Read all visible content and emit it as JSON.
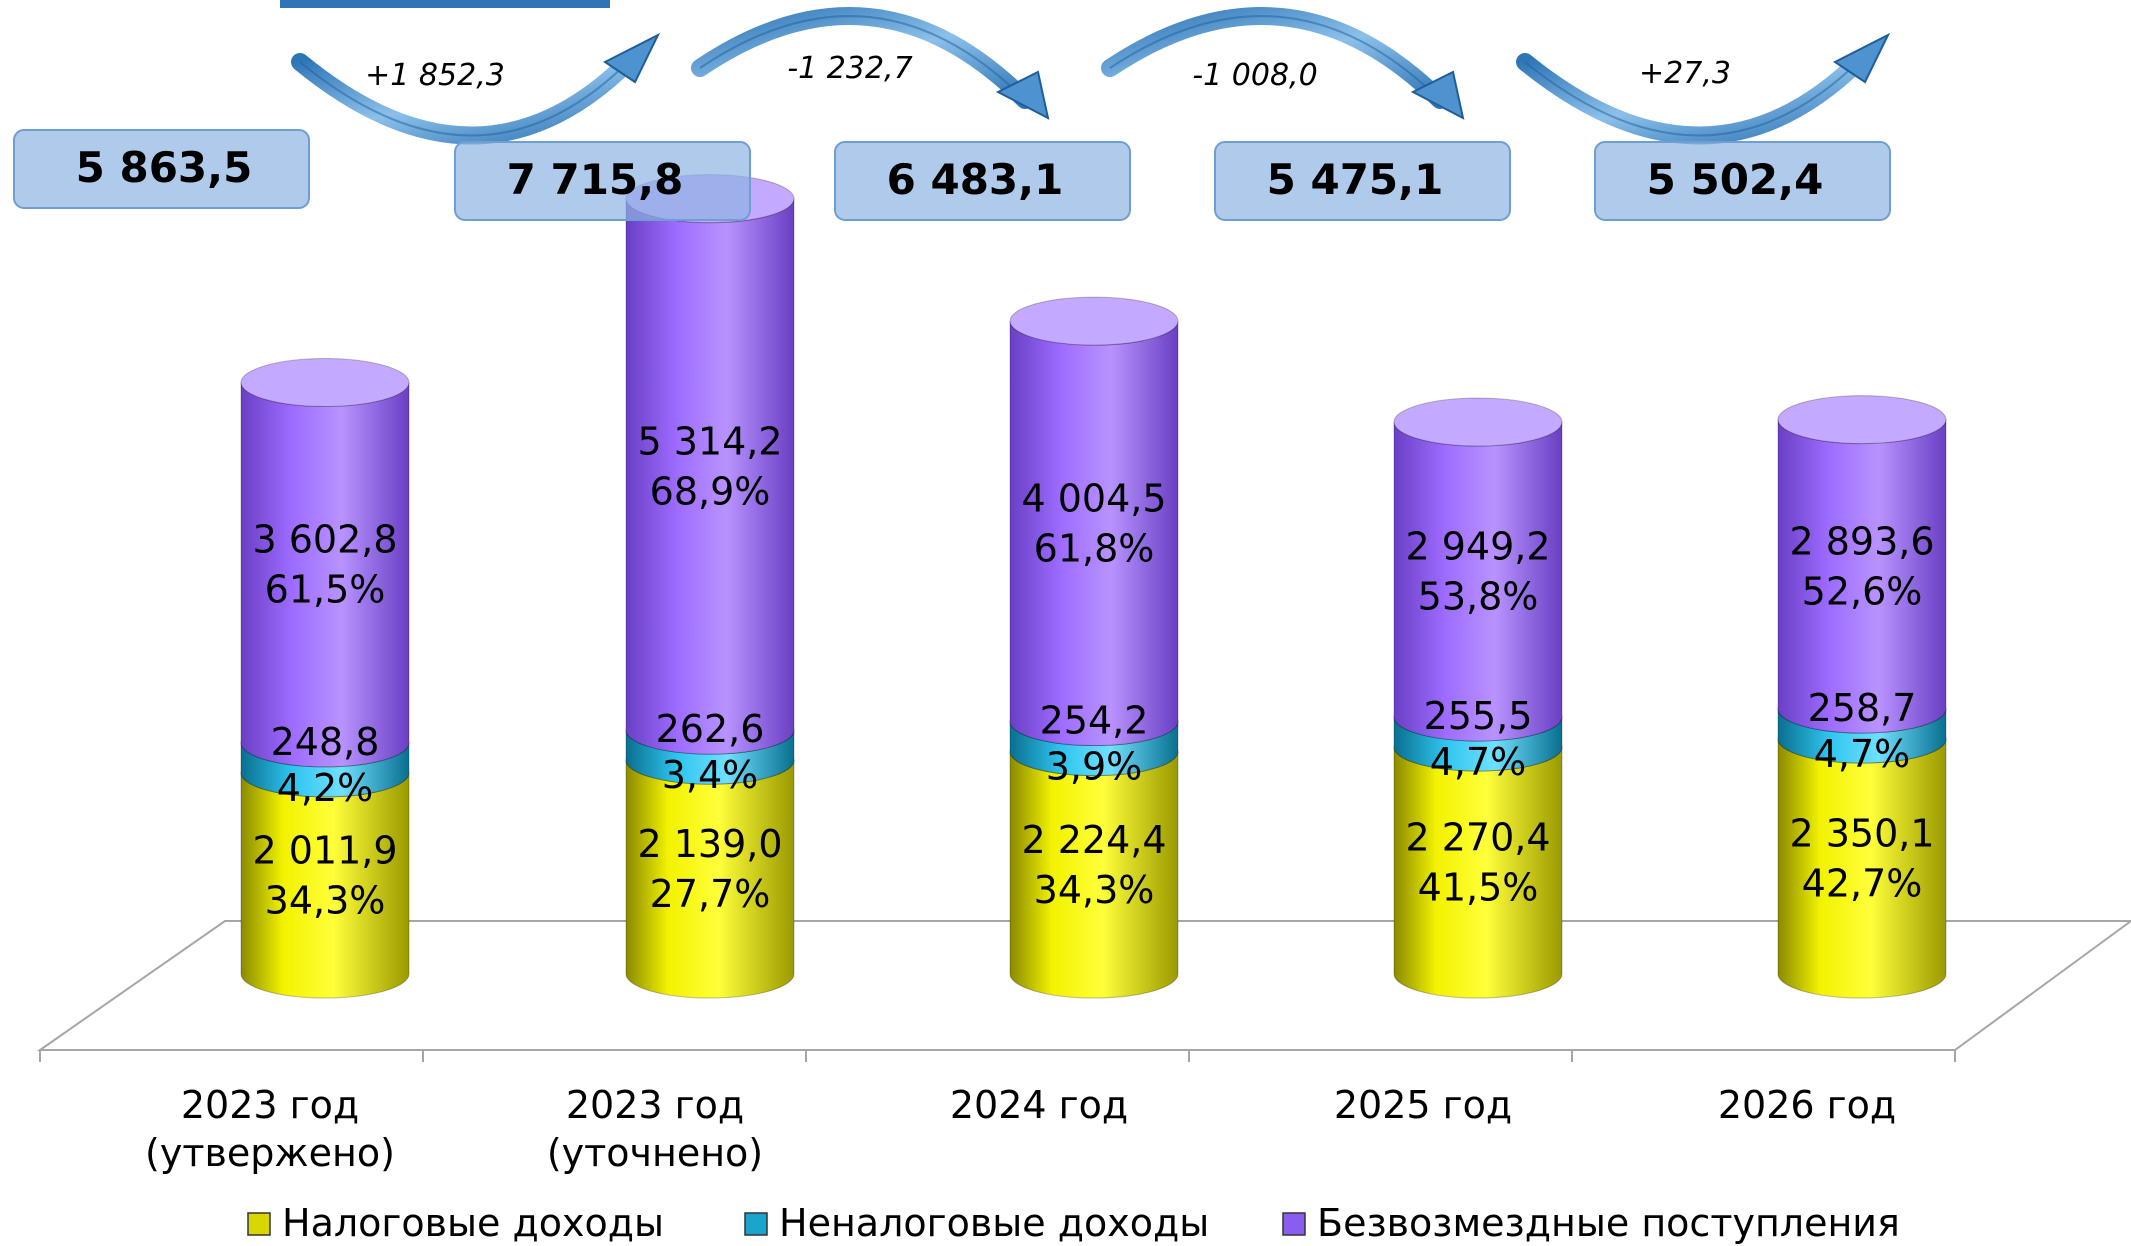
{
  "chart_data": {
    "type": "bar",
    "stacked": true,
    "style": "3d-cylinder",
    "categories": [
      "2023 год\n(утвержено)",
      "2023 год\n(уточнено)",
      "2024 год",
      "2025 год",
      "2026 год"
    ],
    "series": [
      {
        "name": "Налоговые доходы",
        "color": "#e6e600",
        "values": [
          2011.9,
          2139.0,
          2224.4,
          2270.4,
          2350.1
        ],
        "labels": [
          "2 011,9",
          "2 139,0",
          "2 224,4",
          "2 270,4",
          "2 350,1"
        ],
        "percents": [
          "34,3%",
          "27,7%",
          "34,3%",
          "41,5%",
          "42,7%"
        ]
      },
      {
        "name": "Неналоговые доходы",
        "color": "#29b8df",
        "values": [
          248.8,
          262.6,
          254.2,
          255.5,
          258.7
        ],
        "labels": [
          "248,8",
          "262,6",
          "254,2",
          "255,5",
          "258,7"
        ],
        "percents": [
          "4,2%",
          "3,4%",
          "3,9%",
          "4,7%",
          "4,7%"
        ]
      },
      {
        "name": "Безвозмездные поступления",
        "color": "#9966ff",
        "values": [
          3602.8,
          5314.2,
          4004.5,
          2949.2,
          2893.6
        ],
        "labels": [
          "3 602,8",
          "5 314,2",
          "4 004,5",
          "2 949,2",
          "2 893,6"
        ],
        "percents": [
          "61,5%",
          "68,9%",
          "61,8%",
          "53,8%",
          "52,6%"
        ]
      }
    ],
    "totals": [
      5863.5,
      7715.8,
      6483.1,
      5475.1,
      5502.4
    ],
    "total_labels": [
      "5 863,5",
      "7 715,8",
      "6 483,1",
      "5 475,1",
      "5 502,4"
    ],
    "changes": [
      {
        "label": "+1 852,3",
        "direction": "up"
      },
      {
        "label": "-1 232,7",
        "direction": "down"
      },
      {
        "label": "-1 008,0",
        "direction": "down"
      },
      {
        "label": "+27,3",
        "direction": "up"
      }
    ],
    "legend_position": "bottom"
  }
}
